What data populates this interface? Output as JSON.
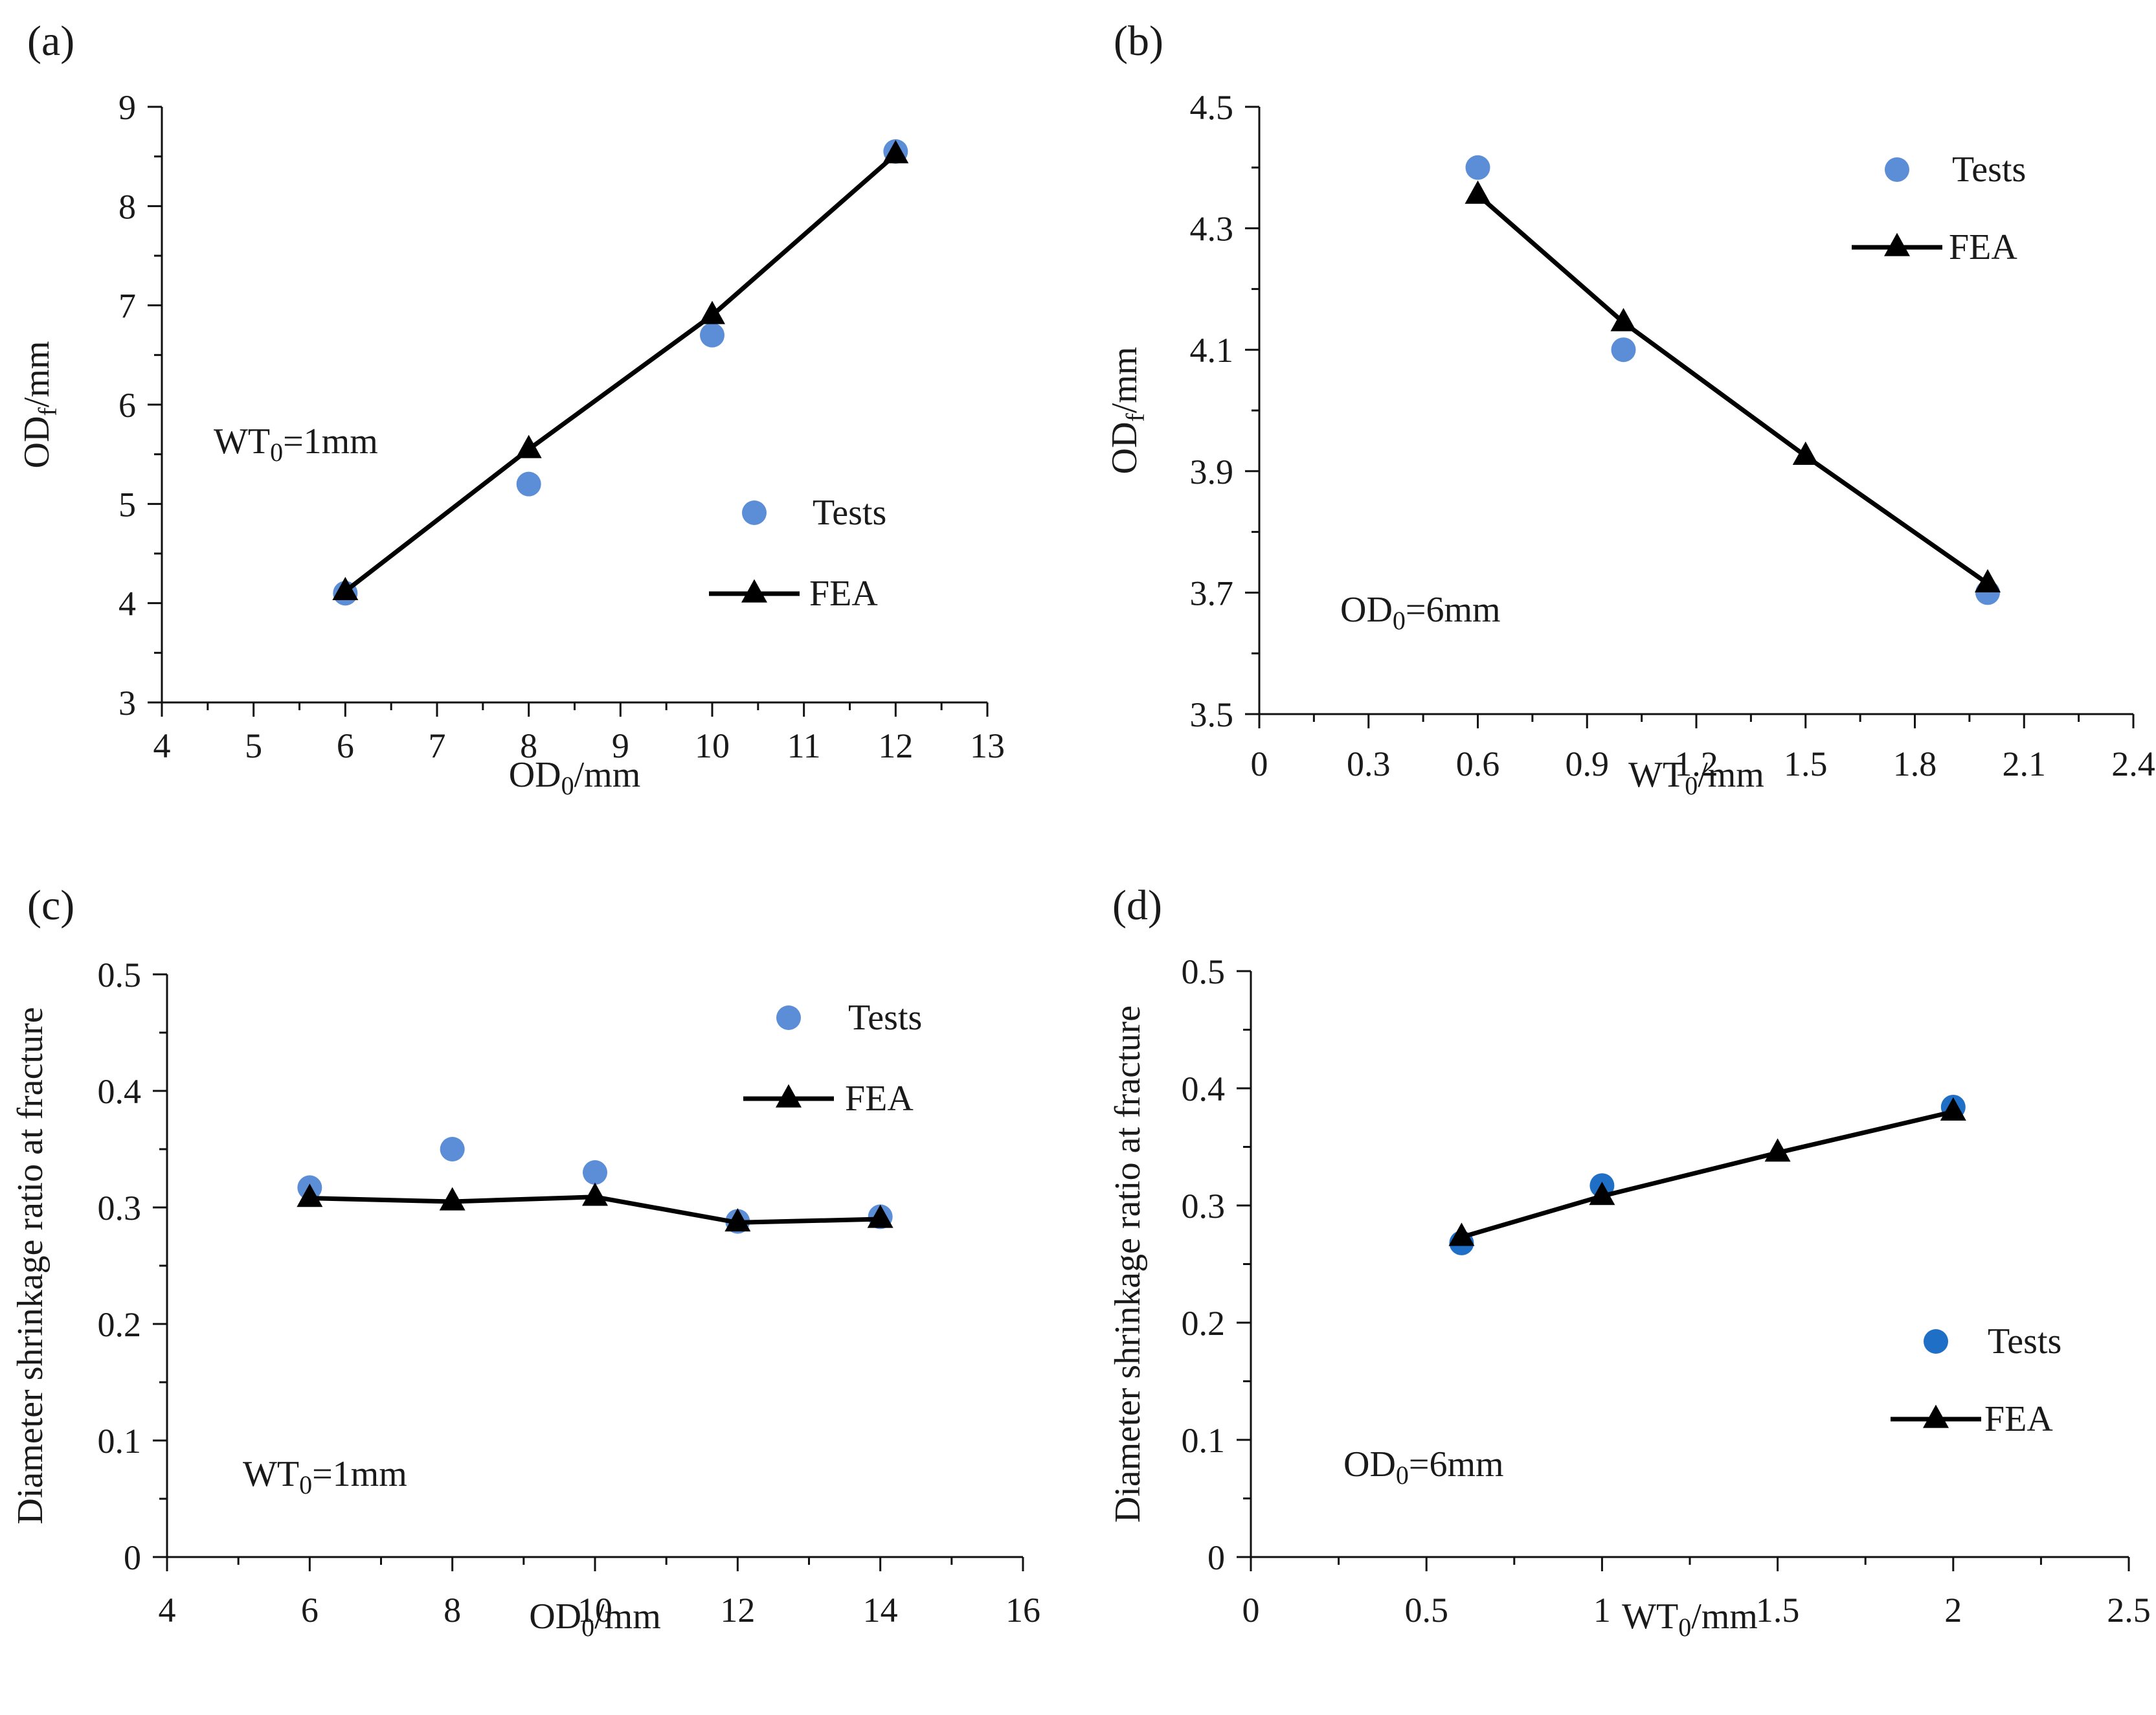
{
  "legend": {
    "tests": "Tests",
    "fea": "FEA"
  },
  "colors": {
    "tests": "#5b8ed6",
    "tests_d": "#1f6fc6",
    "fea": "#000000",
    "axis": "#111111"
  },
  "chart_data": [
    {
      "id": "a",
      "panel_label": "(a)",
      "type": "scatter",
      "xlabel": {
        "main": "OD",
        "sub": "0",
        "rest": "/mm"
      },
      "ylabel": {
        "main": "OD",
        "sub": "f",
        "rest": "/mm"
      },
      "annotation": {
        "main": "WT",
        "sub": "0",
        "rest": "=1mm"
      },
      "xlim": [
        4,
        13
      ],
      "ylim": [
        3,
        9
      ],
      "xticks": [
        4,
        5,
        6,
        7,
        8,
        9,
        10,
        11,
        12,
        13
      ],
      "yticks": [
        3,
        4,
        5,
        6,
        7,
        8,
        9
      ],
      "xtick_labels": [
        "4",
        "5",
        "6",
        "7",
        "8",
        "9",
        "10",
        "11",
        "12",
        "13"
      ],
      "ytick_labels": [
        "3",
        "4",
        "5",
        "6",
        "7",
        "8",
        "9"
      ],
      "series": [
        {
          "name": "Tests",
          "marker": "circle",
          "x": [
            6,
            8,
            10,
            12
          ],
          "y": [
            4.1,
            5.2,
            6.7,
            8.55
          ]
        },
        {
          "name": "FEA",
          "marker": "triangle",
          "line": true,
          "x": [
            6,
            8,
            10,
            12
          ],
          "y": [
            4.12,
            5.55,
            6.9,
            8.52
          ]
        }
      ],
      "legend_position": "center-right"
    },
    {
      "id": "b",
      "panel_label": "(b)",
      "type": "scatter",
      "xlabel": {
        "main": "WT",
        "sub": "0",
        "rest": "/mm"
      },
      "ylabel": {
        "main": "OD",
        "sub": "f",
        "rest": "/mm"
      },
      "annotation": {
        "main": "OD",
        "sub": "0",
        "rest": "=6mm"
      },
      "xlim": [
        0,
        2.4
      ],
      "ylim": [
        3.5,
        4.5
      ],
      "xticks": [
        0,
        0.3,
        0.6,
        0.9,
        1.2,
        1.5,
        1.8,
        2.1,
        2.4
      ],
      "yticks": [
        3.5,
        3.7,
        3.9,
        4.1,
        4.3,
        4.5
      ],
      "xtick_labels": [
        "0",
        "0.3",
        "0.6",
        "0.9",
        "1.2",
        "1.5",
        "1.8",
        "2.1",
        "2.4"
      ],
      "ytick_labels": [
        "3.5",
        "3.7",
        "3.9",
        "4.1",
        "4.3",
        "4.5"
      ],
      "series": [
        {
          "name": "Tests",
          "marker": "circle",
          "x": [
            0.6,
            1.0,
            2.0
          ],
          "y": [
            4.4,
            4.1,
            3.7
          ]
        },
        {
          "name": "FEA",
          "marker": "triangle",
          "line": true,
          "x": [
            0.6,
            1.0,
            1.5,
            2.0
          ],
          "y": [
            4.355,
            4.145,
            3.925,
            3.715
          ]
        }
      ],
      "legend_position": "top-right"
    },
    {
      "id": "c",
      "panel_label": "(c)",
      "type": "scatter",
      "xlabel": {
        "main": "OD",
        "sub": "0",
        "rest": "/mm"
      },
      "ylabel": {
        "main": "Diameter shrinkage ratio at fracture",
        "sub": "",
        "rest": ""
      },
      "annotation": {
        "main": "WT",
        "sub": "0",
        "rest": "=1mm"
      },
      "xlim": [
        4,
        16
      ],
      "ylim": [
        0,
        0.5
      ],
      "xticks": [
        4,
        6,
        8,
        10,
        12,
        14,
        16
      ],
      "yticks": [
        0,
        0.1,
        0.2,
        0.3,
        0.4,
        0.5
      ],
      "xtick_labels": [
        "4",
        "6",
        "8",
        "10",
        "12",
        "14",
        "16"
      ],
      "ytick_labels": [
        "0",
        "0.1",
        "0.2",
        "0.3",
        "0.4",
        "0.5"
      ],
      "series": [
        {
          "name": "Tests",
          "marker": "circle",
          "x": [
            6,
            8,
            10,
            12,
            14
          ],
          "y": [
            0.317,
            0.35,
            0.33,
            0.288,
            0.292
          ]
        },
        {
          "name": "FEA",
          "marker": "triangle",
          "line": true,
          "x": [
            6,
            8,
            10,
            12,
            14
          ],
          "y": [
            0.308,
            0.305,
            0.309,
            0.287,
            0.29
          ]
        }
      ],
      "legend_position": "top-right"
    },
    {
      "id": "d",
      "panel_label": "(d)",
      "type": "scatter",
      "xlabel": {
        "main": "WT",
        "sub": "0",
        "rest": "/mm"
      },
      "ylabel": {
        "main": "Diameter shrinkage ratio at fracture",
        "sub": "",
        "rest": ""
      },
      "annotation": {
        "main": "OD",
        "sub": "0",
        "rest": "=6mm"
      },
      "xlim": [
        0,
        2.5
      ],
      "ylim": [
        0,
        0.5
      ],
      "xticks": [
        0,
        0.5,
        1,
        1.5,
        2,
        2.5
      ],
      "yticks": [
        0,
        0.1,
        0.2,
        0.3,
        0.4,
        0.5
      ],
      "xtick_labels": [
        "0",
        "0.5",
        "1",
        "1.5",
        "2",
        "2.5"
      ],
      "ytick_labels": [
        "0",
        "0.1",
        "0.2",
        "0.3",
        "0.4",
        "0.5"
      ],
      "series": [
        {
          "name": "Tests",
          "marker": "circle",
          "x": [
            0.6,
            1.0,
            2.0
          ],
          "y": [
            0.268,
            0.317,
            0.384
          ]
        },
        {
          "name": "FEA",
          "marker": "triangle",
          "line": true,
          "x": [
            0.6,
            1.0,
            1.5,
            2.0
          ],
          "y": [
            0.273,
            0.308,
            0.345,
            0.38
          ]
        }
      ],
      "legend_position": "bottom-right"
    }
  ]
}
